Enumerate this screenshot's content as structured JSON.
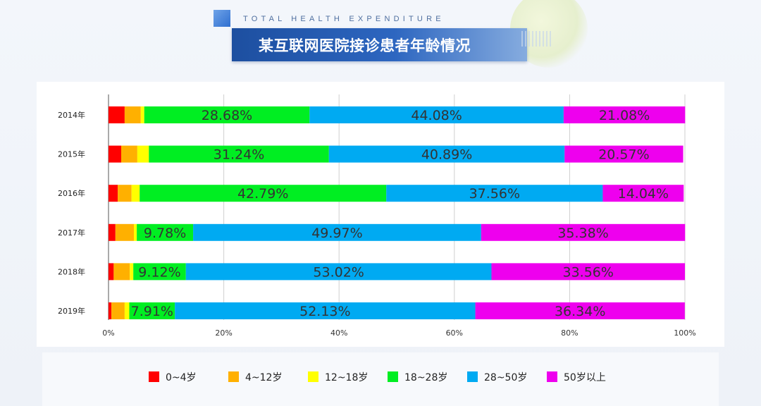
{
  "header": {
    "subtitle": "TOTAL HEALTH EXPENDITURE",
    "title": "某互联网医院接诊患者年龄情况"
  },
  "chart_data": {
    "type": "bar",
    "orientation": "horizontal",
    "stacked": true,
    "normalized": true,
    "categories": [
      "2014年",
      "2015年",
      "2016年",
      "2017年",
      "2018年",
      "2019年"
    ],
    "series": [
      {
        "name": "0~4岁",
        "color": "#ff0000",
        "values": [
          2.8,
          2.2,
          1.6,
          1.2,
          0.9,
          0.5
        ]
      },
      {
        "name": "4~12岁",
        "color": "#ffb000",
        "values": [
          2.8,
          2.8,
          2.4,
          3.2,
          2.8,
          2.3
        ]
      },
      {
        "name": "12~18岁",
        "color": "#ffff00",
        "values": [
          0.6,
          2.0,
          1.4,
          0.5,
          0.6,
          0.8
        ]
      },
      {
        "name": "18~28岁",
        "color": "#00ee22",
        "values": [
          28.68,
          31.24,
          42.79,
          9.78,
          9.12,
          7.91
        ]
      },
      {
        "name": "28~50岁",
        "color": "#00aaf2",
        "values": [
          44.08,
          40.89,
          37.56,
          49.97,
          53.02,
          52.13
        ]
      },
      {
        "name": "50岁以上",
        "color": "#ee00ee",
        "values": [
          21.08,
          20.57,
          14.04,
          35.38,
          33.56,
          36.34
        ]
      }
    ],
    "data_labels": {
      "18~28岁": [
        "28.68%",
        "31.24%",
        "42.79%",
        "9.78%",
        "9.12%",
        "7.91%"
      ],
      "28~50岁": [
        "44.08%",
        "40.89%",
        "37.56%",
        "49.97%",
        "53.02%",
        "52.13%"
      ],
      "50岁以上": [
        "21.08%",
        "20.57%",
        "14.04%",
        "35.38%",
        "33.56%",
        "36.34%"
      ]
    },
    "x_ticks": [
      "0%",
      "20%",
      "40%",
      "60%",
      "80%",
      "100%"
    ],
    "xlim": [
      0,
      100
    ],
    "grid": true,
    "legend_position": "bottom"
  }
}
